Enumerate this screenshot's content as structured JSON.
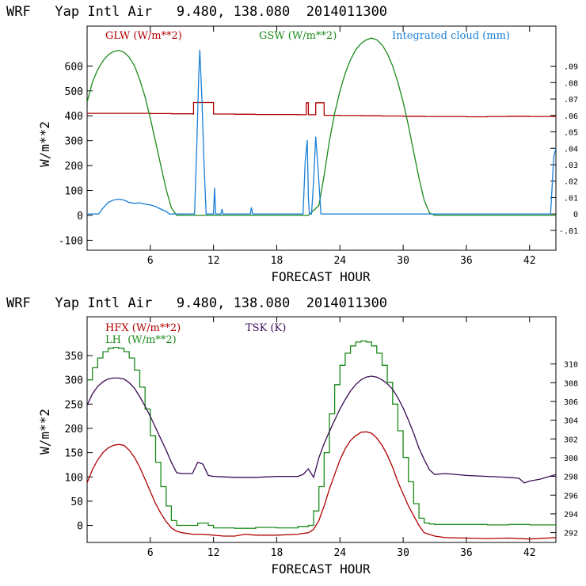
{
  "chart_data": [
    {
      "type": "line",
      "header": "WRF   Yap Intl Air   9.480, 138.080  2014011300",
      "xlabel": "FORECAST HOUR",
      "ylabel": "W/m**2",
      "xlim": [
        0,
        44.5
      ],
      "ylim": [
        -140,
        760
      ],
      "y2lim": [
        -0.0221,
        0.1144
      ],
      "xticks": [
        6,
        12,
        18,
        24,
        30,
        36,
        42
      ],
      "yticks": [
        -100,
        0,
        100,
        200,
        300,
        400,
        500,
        600
      ],
      "y2ticks": [
        -0.01,
        0,
        0.01,
        0.02,
        0.03,
        0.04,
        0.05,
        0.06,
        0.07,
        0.08,
        0.09
      ],
      "y2ticklabels": [
        "-.01",
        "0",
        ".01",
        ".02",
        ".03",
        ".04",
        ".05",
        ".06",
        ".07",
        ".08",
        ".09"
      ],
      "legend": [
        "GLW (W/m**2)",
        "GSW (W/m**2)",
        "Integrated cloud (mm)"
      ],
      "series": [
        {
          "name": "GLW (W/m**2)",
          "color": "#b00000",
          "axis": "left",
          "step": true,
          "x": [
            0,
            2,
            4,
            6,
            8,
            10,
            10.1,
            11,
            11.8,
            12,
            14,
            16,
            18,
            20,
            20.8,
            21.0,
            21.6,
            21.7,
            22.4,
            22.5,
            24,
            26,
            28,
            30,
            32,
            34,
            36,
            38,
            40,
            42,
            44.5
          ],
          "y": [
            410,
            410,
            410,
            409,
            408,
            407,
            453,
            453,
            453,
            407,
            406,
            405,
            405,
            404,
            452,
            404,
            404,
            452,
            452,
            402,
            401,
            400,
            399,
            398,
            397,
            397,
            396,
            397,
            398,
            397,
            398
          ]
        },
        {
          "name": "GSW (W/m**2)",
          "color": "#1a8a1a",
          "axis": "left",
          "x": [
            0,
            0.5,
            1,
            1.5,
            2,
            2.5,
            3,
            3.5,
            4,
            4.5,
            5,
            5.5,
            6,
            6.5,
            7,
            7.5,
            8,
            8.5,
            9,
            20,
            21,
            22,
            22.5,
            23,
            23.5,
            24,
            24.5,
            25,
            25.5,
            26,
            26.5,
            27,
            27.5,
            28,
            28.5,
            29,
            29.5,
            30,
            30.5,
            31,
            31.5,
            32,
            32.5,
            33,
            44.5
          ],
          "y": [
            455,
            535,
            585,
            620,
            645,
            658,
            663,
            655,
            635,
            600,
            545,
            475,
            390,
            295,
            200,
            105,
            30,
            0,
            0,
            0,
            0,
            40,
            160,
            300,
            410,
            500,
            570,
            625,
            665,
            690,
            705,
            712,
            705,
            685,
            650,
            600,
            535,
            455,
            360,
            255,
            150,
            60,
            10,
            0,
            0
          ]
        },
        {
          "name": "Integrated cloud (mm)",
          "color": "#1a7fd6",
          "axis": "right",
          "x": [
            0,
            1.1,
            1.5,
            2,
            2.5,
            3,
            3.5,
            4,
            4.5,
            5,
            5.5,
            6,
            6.5,
            7,
            7.5,
            7.8,
            10.2,
            10.4,
            10.6,
            10.7,
            10.9,
            11.1,
            11.3,
            12.0,
            12.1,
            12.2,
            12.3,
            12.7,
            12.8,
            12.9,
            15.5,
            15.6,
            15.7,
            20.5,
            20.7,
            20.9,
            21.0,
            21.1,
            21.3,
            21.5,
            21.7,
            21.9,
            22.2,
            22.5,
            44.0,
            44.3,
            44.5
          ],
          "y": [
            0,
            0,
            0.0035,
            0.007,
            0.0085,
            0.009,
            0.0085,
            0.007,
            0.0065,
            0.0068,
            0.006,
            0.0055,
            0.0045,
            0.003,
            0.0015,
            0,
            0,
            0.04,
            0.085,
            0.1,
            0.07,
            0.03,
            0,
            0,
            0.016,
            0,
            0,
            0,
            0.003,
            0,
            0,
            0.004,
            0,
            0,
            0.032,
            0.045,
            0.01,
            0,
            0,
            0.02,
            0.047,
            0.03,
            0,
            0,
            0,
            0.035,
            0.04
          ]
        }
      ]
    },
    {
      "type": "line",
      "header": "WRF   Yap Intl Air   9.480, 138.080  2014011300",
      "xlabel": "FORECAST HOUR",
      "ylabel": "W/m**2",
      "xlim": [
        0,
        44.5
      ],
      "ylim": [
        -35,
        430
      ],
      "y2lim": [
        290.95,
        315.04
      ],
      "xticks": [
        6,
        12,
        18,
        24,
        30,
        36,
        42
      ],
      "yticks": [
        0,
        50,
        100,
        150,
        200,
        250,
        300,
        350
      ],
      "y2ticks": [
        292,
        294,
        296,
        298,
        300,
        302,
        304,
        306,
        308,
        310
      ],
      "legend": [
        "HFX (W/m**2)",
        "LH  (W/m**2)",
        "TSK (K)"
      ],
      "series": [
        {
          "name": "HFX (W/m**2)",
          "color": "#b00000",
          "axis": "left",
          "x": [
            0,
            0.5,
            1,
            1.5,
            2,
            2.5,
            3,
            3.5,
            4,
            4.5,
            5,
            5.5,
            6,
            6.5,
            7,
            7.5,
            8,
            8.5,
            9,
            10,
            11,
            12,
            13,
            14,
            15,
            16,
            18,
            20,
            21,
            21.5,
            22,
            22.5,
            23,
            23.5,
            24,
            24.5,
            25,
            25.5,
            26,
            26.5,
            27,
            27.5,
            28,
            28.5,
            29,
            29.5,
            30,
            30.5,
            31,
            31.5,
            32,
            33,
            34,
            36,
            38,
            40,
            42,
            44.5
          ],
          "y": [
            88,
            115,
            135,
            150,
            160,
            165,
            167,
            165,
            155,
            140,
            120,
            95,
            70,
            45,
            25,
            8,
            -5,
            -12,
            -15,
            -18,
            -18,
            -20,
            -22,
            -22,
            -18,
            -20,
            -20,
            -18,
            -15,
            -8,
            10,
            40,
            75,
            105,
            135,
            158,
            175,
            185,
            192,
            193,
            190,
            180,
            165,
            145,
            120,
            90,
            65,
            40,
            20,
            0,
            -15,
            -22,
            -25,
            -26,
            -27,
            -26,
            -28,
            -25
          ]
        },
        {
          "name": "LH  (W/m**2)",
          "color": "#1a8a1a",
          "axis": "left",
          "step": true,
          "x": [
            0,
            0.5,
            1,
            1.5,
            2,
            2.5,
            3,
            3.5,
            4,
            4.5,
            5,
            5.5,
            6,
            6.5,
            7,
            7.5,
            8,
            8.5,
            9,
            10.5,
            11.5,
            12,
            14,
            16,
            18,
            20,
            21,
            21.5,
            22,
            22.5,
            23,
            23.5,
            24,
            24.5,
            25,
            25.5,
            26,
            26.5,
            27,
            27.5,
            28,
            28.5,
            29,
            29.5,
            30,
            30.5,
            31,
            31.5,
            32,
            32.5,
            33,
            34,
            36,
            38,
            40,
            42,
            44.5
          ],
          "y": [
            300,
            325,
            345,
            358,
            365,
            367,
            365,
            358,
            345,
            320,
            285,
            240,
            185,
            130,
            80,
            40,
            10,
            0,
            0,
            5,
            0,
            -5,
            -6,
            -4,
            -5,
            -2,
            0,
            30,
            80,
            150,
            230,
            290,
            330,
            355,
            370,
            378,
            380,
            378,
            370,
            355,
            330,
            295,
            250,
            195,
            140,
            90,
            45,
            15,
            5,
            3,
            2,
            2,
            2,
            1,
            2,
            1,
            -2
          ]
        },
        {
          "name": "TSK (K)",
          "color": "#3a0a52",
          "axis": "right",
          "x": [
            0,
            0.5,
            1,
            1.5,
            2,
            2.5,
            3,
            3.5,
            4,
            4.5,
            5,
            5.5,
            6,
            6.5,
            7,
            7.5,
            8,
            8.5,
            9,
            10,
            10.5,
            11,
            11.5,
            12,
            14,
            16,
            18,
            20,
            20.5,
            21,
            21.5,
            22,
            22.5,
            23,
            23.5,
            24,
            24.5,
            25,
            25.5,
            26,
            26.5,
            27,
            27.5,
            28,
            28.5,
            29,
            29.5,
            30,
            30.5,
            31,
            31.5,
            32,
            32.5,
            33,
            34,
            36,
            38,
            40,
            41,
            41.5,
            42,
            43,
            44.5
          ],
          "y": [
            305.6,
            306.8,
            307.6,
            308.1,
            308.4,
            308.5,
            308.5,
            308.4,
            308.0,
            307.4,
            306.5,
            305.5,
            304.4,
            303.2,
            302.0,
            300.8,
            299.5,
            298.4,
            298.3,
            298.3,
            299.5,
            299.3,
            298.1,
            298.0,
            297.9,
            297.9,
            298.0,
            298.0,
            298.2,
            298.8,
            297.9,
            300.0,
            301.5,
            302.8,
            304.0,
            305.2,
            306.2,
            307.1,
            307.8,
            308.3,
            308.6,
            308.7,
            308.6,
            308.3,
            307.9,
            307.3,
            306.4,
            305.3,
            304.0,
            302.6,
            301.0,
            299.8,
            298.7,
            298.2,
            298.3,
            298.1,
            298.0,
            297.9,
            297.8,
            297.3,
            297.5,
            297.7,
            298.2
          ]
        }
      ]
    }
  ]
}
